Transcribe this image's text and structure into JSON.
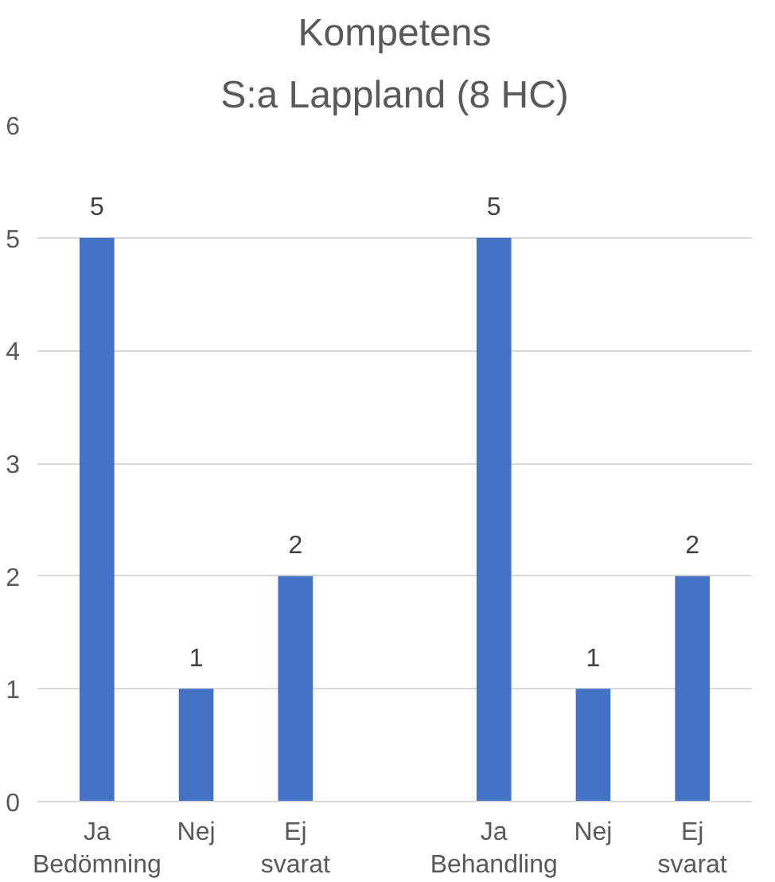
{
  "chart_data": {
    "type": "bar",
    "title": "Kompetens",
    "subtitle": "S:a Lappland (8 HC)",
    "categories": [
      "Ja Bedömning",
      "Nej",
      "Ej svarat",
      null,
      "Ja Behandling",
      "Nej",
      "Ej svarat"
    ],
    "values": [
      5,
      1,
      2,
      null,
      5,
      1,
      2
    ],
    "color": "#4472c4",
    "ylim": [
      0,
      6
    ],
    "yticks": [
      0,
      1,
      2,
      3,
      4,
      5,
      6
    ],
    "grid": "y",
    "data_labels": true
  }
}
